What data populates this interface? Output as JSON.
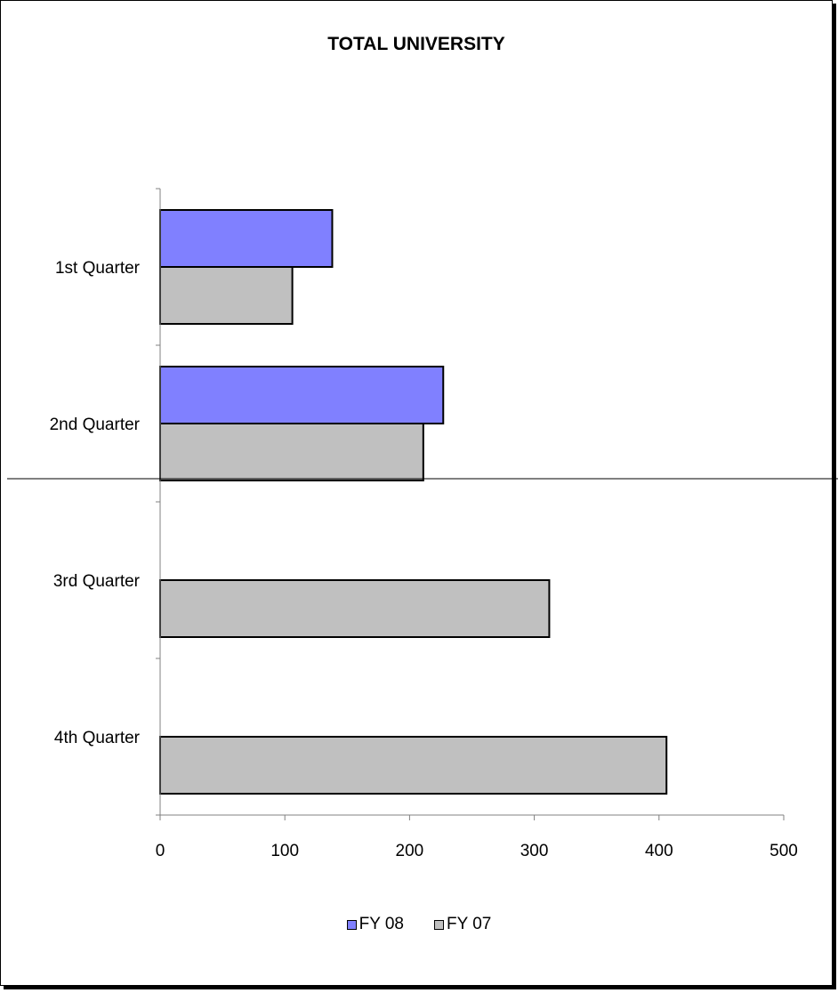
{
  "chart_data": {
    "type": "bar",
    "orientation": "horizontal",
    "title": "TOTAL UNIVERSITY",
    "categories": [
      "1st Quarter",
      "2nd Quarter",
      "3rd Quarter",
      "4th Quarter"
    ],
    "series": [
      {
        "name": "FY 08",
        "values": [
          138,
          227,
          null,
          null
        ],
        "color": "#8080ff"
      },
      {
        "name": "FY 07",
        "values": [
          106,
          211,
          312,
          406
        ],
        "color": "#c0c0c0"
      }
    ],
    "xlim": [
      0,
      500
    ],
    "xticks": [
      "0",
      "100",
      "200",
      "300",
      "400",
      "500"
    ],
    "grid": false,
    "legend": "bottom"
  }
}
